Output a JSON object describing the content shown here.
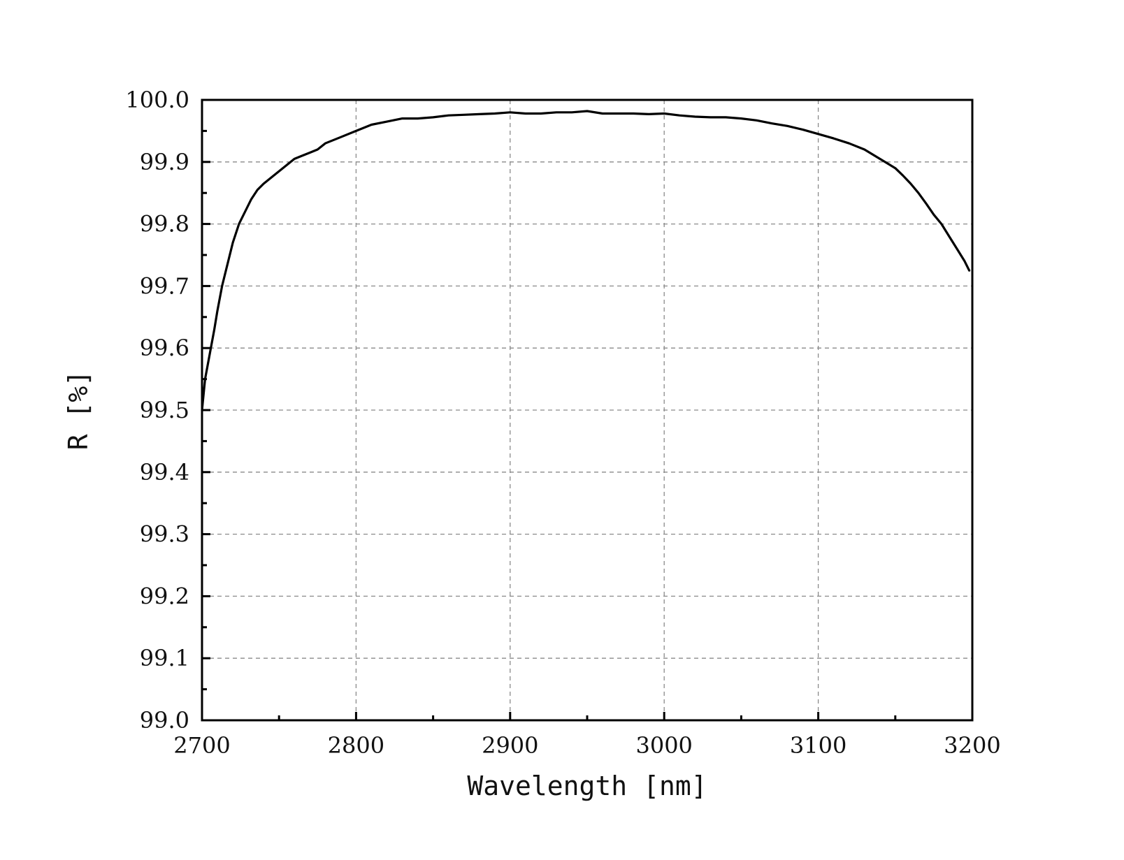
{
  "chart_data": {
    "type": "line",
    "title": "",
    "xlabel": "Wavelength [nm]",
    "ylabel": "R [%]",
    "xlim": [
      2700,
      3200
    ],
    "ylim": [
      99.0,
      100.0
    ],
    "x_major_ticks": [
      "2700",
      "2800",
      "2900",
      "3000",
      "3100",
      "3200"
    ],
    "y_major_ticks": [
      "99.0",
      "99.1",
      "99.2",
      "99.3",
      "99.4",
      "99.5",
      "99.6",
      "99.7",
      "99.8",
      "99.9",
      "100.0"
    ],
    "grid": true,
    "line_color": "#000000",
    "series": [
      {
        "x": [
          2700,
          2702,
          2705,
          2708,
          2710,
          2713,
          2716,
          2720,
          2724,
          2728,
          2732,
          2736,
          2740,
          2745,
          2750,
          2755,
          2760,
          2765,
          2770,
          2775,
          2780,
          2790,
          2800,
          2810,
          2820,
          2830,
          2840,
          2850,
          2860,
          2870,
          2880,
          2890,
          2900,
          2910,
          2920,
          2930,
          2940,
          2950,
          2960,
          2970,
          2980,
          2990,
          3000,
          3010,
          3020,
          3030,
          3040,
          3050,
          3060,
          3070,
          3080,
          3090,
          3100,
          3110,
          3120,
          3130,
          3140,
          3150,
          3155,
          3160,
          3165,
          3170,
          3175,
          3180,
          3185,
          3190,
          3195,
          3198
        ],
        "y": [
          99.5,
          99.55,
          99.59,
          99.63,
          99.66,
          99.7,
          99.73,
          99.77,
          99.8,
          99.82,
          99.84,
          99.855,
          99.865,
          99.875,
          99.885,
          99.895,
          99.905,
          99.91,
          99.915,
          99.92,
          99.93,
          99.94,
          99.95,
          99.96,
          99.965,
          99.97,
          99.97,
          99.972,
          99.975,
          99.976,
          99.977,
          99.978,
          99.98,
          99.978,
          99.978,
          99.98,
          99.98,
          99.982,
          99.978,
          99.978,
          99.978,
          99.977,
          99.978,
          99.975,
          99.973,
          99.972,
          99.972,
          99.97,
          99.967,
          99.962,
          99.958,
          99.952,
          99.945,
          99.938,
          99.93,
          99.92,
          99.905,
          99.89,
          99.878,
          99.865,
          99.85,
          99.833,
          99.815,
          99.8,
          99.78,
          99.76,
          99.74,
          99.725
        ]
      }
    ]
  }
}
